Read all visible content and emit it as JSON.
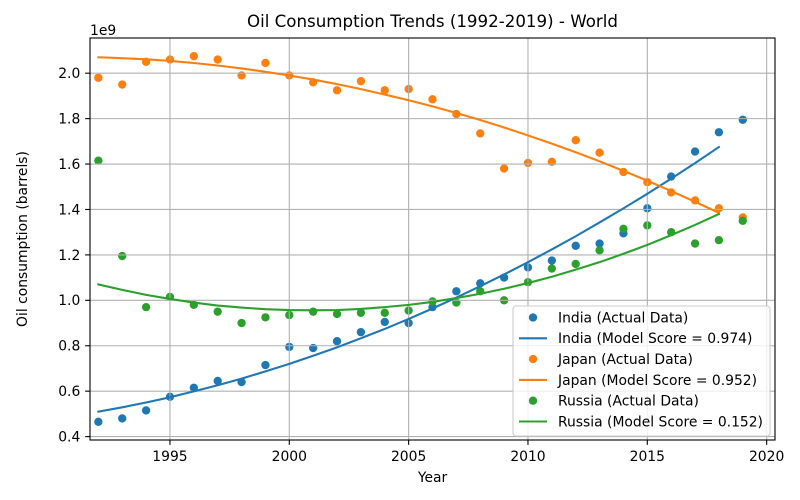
{
  "chart_data": {
    "type": "scatter",
    "title": "Oil Consumption Trends (1992-2019) - World",
    "xlabel": "Year",
    "ylabel": "Oil consumption (barrels)",
    "y_offset_label": "1e9",
    "xlim": [
      1991.65,
      2020.35
    ],
    "ylim": [
      0.385,
      2.155
    ],
    "xticks": [
      1995,
      2000,
      2005,
      2010,
      2015,
      2020
    ],
    "yticks": [
      "0.4",
      "0.6",
      "0.8",
      "1.0",
      "1.2",
      "1.4",
      "1.6",
      "1.8",
      "2.0"
    ],
    "grid": true,
    "legend_position": "lower right",
    "x": [
      1992,
      1993,
      1994,
      1995,
      1996,
      1997,
      1998,
      1999,
      2000,
      2001,
      2002,
      2003,
      2004,
      2005,
      2006,
      2007,
      2008,
      2009,
      2010,
      2011,
      2012,
      2013,
      2014,
      2015,
      2016,
      2017,
      2018,
      2019
    ],
    "series": [
      {
        "name": "India (Actual Data)",
        "kind": "scatter",
        "color": "#1f77b4",
        "values": [
          0.465,
          0.48,
          0.515,
          0.575,
          0.615,
          0.645,
          0.64,
          0.715,
          0.795,
          0.79,
          0.82,
          0.86,
          0.905,
          0.9,
          0.97,
          1.04,
          1.075,
          1.1,
          1.145,
          1.175,
          1.24,
          1.25,
          1.295,
          1.405,
          1.545,
          1.655,
          1.74,
          1.795
        ]
      },
      {
        "name": "India (Model Score = 0.974)",
        "kind": "line",
        "color": "#1f77b4",
        "x": [
          1992,
          1993,
          1994,
          1995,
          1996,
          1997,
          1998,
          1999,
          2000,
          2001,
          2002,
          2003,
          2004,
          2005,
          2006,
          2007,
          2008,
          2009,
          2010,
          2011,
          2012,
          2013,
          2014,
          2015,
          2016,
          2017,
          2018
        ],
        "values": [
          0.51,
          0.529,
          0.55,
          0.573,
          0.599,
          0.626,
          0.655,
          0.687,
          0.72,
          0.756,
          0.793,
          0.833,
          0.874,
          0.918,
          0.964,
          1.012,
          1.062,
          1.114,
          1.168,
          1.224,
          1.282,
          1.343,
          1.405,
          1.469,
          1.536,
          1.604,
          1.675
        ]
      },
      {
        "name": "Japan (Actual Data)",
        "kind": "scatter",
        "color": "#ff7f0e",
        "values": [
          1.98,
          1.95,
          2.05,
          2.06,
          2.075,
          2.06,
          1.99,
          2.045,
          1.99,
          1.96,
          1.925,
          1.965,
          1.925,
          1.93,
          1.885,
          1.82,
          1.735,
          1.58,
          1.605,
          1.61,
          1.705,
          1.65,
          1.565,
          1.52,
          1.475,
          1.44,
          1.405,
          1.365
        ]
      },
      {
        "name": "Japan (Model Score = 0.952)",
        "kind": "line",
        "color": "#ff7f0e",
        "x": [
          1992,
          1993,
          1994,
          1995,
          1996,
          1997,
          1998,
          1999,
          2000,
          2001,
          2002,
          2003,
          2004,
          2005,
          2006,
          2007,
          2008,
          2009,
          2010,
          2011,
          2012,
          2013,
          2014,
          2015,
          2016,
          2017,
          2018
        ],
        "values": [
          2.07,
          2.066,
          2.061,
          2.054,
          2.045,
          2.034,
          2.021,
          2.006,
          1.99,
          1.972,
          1.952,
          1.93,
          1.906,
          1.881,
          1.854,
          1.825,
          1.794,
          1.761,
          1.726,
          1.69,
          1.652,
          1.612,
          1.57,
          1.527,
          1.481,
          1.434,
          1.385
        ]
      },
      {
        "name": "Russia (Actual Data)",
        "kind": "scatter",
        "color": "#2ca02c",
        "values": [
          1.615,
          1.195,
          0.97,
          1.015,
          0.98,
          0.95,
          0.9,
          0.925,
          0.935,
          0.95,
          0.94,
          0.945,
          0.945,
          0.955,
          0.995,
          0.99,
          1.04,
          1.0,
          1.08,
          1.14,
          1.16,
          1.22,
          1.315,
          1.33,
          1.3,
          1.25,
          1.265,
          1.35
        ]
      },
      {
        "name": "Russia (Model Score = 0.152)",
        "kind": "line",
        "color": "#2ca02c",
        "x": [
          1992,
          1993,
          1994,
          1995,
          1996,
          1997,
          1998,
          1999,
          2000,
          2001,
          2002,
          2003,
          2004,
          2005,
          2006,
          2007,
          2008,
          2009,
          2010,
          2011,
          2012,
          2013,
          2014,
          2015,
          2016,
          2017,
          2018
        ],
        "values": [
          1.07,
          1.046,
          1.024,
          1.006,
          0.99,
          0.977,
          0.968,
          0.961,
          0.957,
          0.956,
          0.957,
          0.962,
          0.97,
          0.98,
          0.993,
          1.01,
          1.029,
          1.051,
          1.076,
          1.104,
          1.135,
          1.168,
          1.205,
          1.244,
          1.287,
          1.332,
          1.38
        ]
      }
    ]
  }
}
